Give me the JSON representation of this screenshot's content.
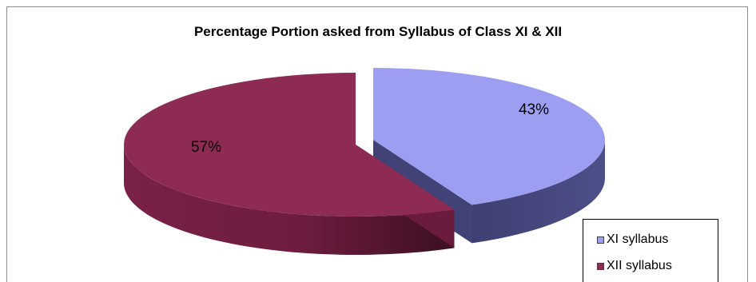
{
  "chart_data": {
    "type": "pie",
    "title": "Percentage Portion asked from Syllabus of Class XI & XII",
    "slices": [
      {
        "name": "XI syllabus",
        "value": 43,
        "label": "43%",
        "color": "#9c9ef2",
        "side_color": "#414376"
      },
      {
        "name": "XII syllabus",
        "value": 57,
        "label": "57%",
        "color": "#8e2b55",
        "side_color": "#6b1b3e"
      }
    ],
    "style": "3d-exploded",
    "legend_position": "bottom-right"
  }
}
